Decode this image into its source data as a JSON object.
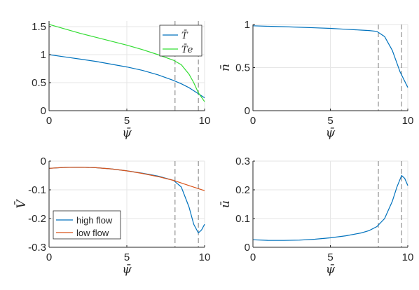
{
  "chart_data": [
    {
      "id": "T",
      "type": "line",
      "xlabel": "ψ̄",
      "ylabel": "",
      "xlim": [
        0,
        10
      ],
      "ylim": [
        0,
        1.6
      ],
      "xticks": [
        0,
        5,
        10
      ],
      "xtick_labels": [
        "0",
        "5",
        "10"
      ],
      "yticks": [
        0,
        0.5,
        1,
        1.5
      ],
      "ytick_labels": [
        "0",
        "0.5",
        "1",
        "1.5"
      ],
      "grid": true,
      "vlines": [
        8.1,
        9.6
      ],
      "legend": "top-right",
      "series": [
        {
          "name": "T̄",
          "color": "#0072BD",
          "x": [
            0,
            1,
            2,
            3,
            4,
            5,
            6,
            7,
            8,
            8.5,
            9,
            9.5,
            10
          ],
          "y": [
            1.0,
            0.96,
            0.92,
            0.88,
            0.83,
            0.78,
            0.72,
            0.64,
            0.54,
            0.48,
            0.41,
            0.32,
            0.23
          ]
        },
        {
          "name": "T̄e",
          "color": "#33DD33",
          "x": [
            0,
            1,
            2,
            3,
            4,
            5,
            6,
            7,
            8,
            8.5,
            9,
            9.3,
            9.6,
            10
          ],
          "y": [
            1.54,
            1.46,
            1.38,
            1.31,
            1.24,
            1.17,
            1.09,
            1.0,
            0.9,
            0.82,
            0.65,
            0.5,
            0.32,
            0.16
          ]
        }
      ]
    },
    {
      "id": "n",
      "type": "line",
      "xlabel": "ψ̄",
      "ylabel": "n̄",
      "xlim": [
        0,
        10
      ],
      "ylim": [
        0,
        1
      ],
      "xticks": [
        0,
        5,
        10
      ],
      "xtick_labels": [
        "0",
        "5",
        "10"
      ],
      "yticks": [
        0,
        0.5,
        1
      ],
      "ytick_labels": [
        "0",
        "0.5",
        "1"
      ],
      "grid": true,
      "vlines": [
        8.1,
        9.6
      ],
      "series": [
        {
          "name": "",
          "color": "#0072BD",
          "x": [
            0,
            1,
            2,
            3,
            4,
            5,
            6,
            7,
            7.5,
            8,
            8.5,
            9,
            9.5,
            10
          ],
          "y": [
            0.985,
            0.98,
            0.975,
            0.968,
            0.962,
            0.955,
            0.945,
            0.935,
            0.93,
            0.92,
            0.86,
            0.7,
            0.45,
            0.27
          ]
        }
      ]
    },
    {
      "id": "V",
      "type": "line",
      "xlabel": "ψ̄",
      "ylabel": "V̄",
      "xlim": [
        0,
        10
      ],
      "ylim": [
        -0.3,
        0
      ],
      "xticks": [
        0,
        5,
        10
      ],
      "xtick_labels": [
        "0",
        "5",
        "10"
      ],
      "yticks": [
        -0.3,
        -0.2,
        -0.1,
        0
      ],
      "ytick_labels": [
        "-0.3",
        "-0.2",
        "-0.1",
        "0"
      ],
      "grid": true,
      "vlines": [
        8.1,
        9.6
      ],
      "legend": "bottom-left",
      "series": [
        {
          "name": "high flow",
          "color": "#0072BD",
          "x": [
            0,
            1,
            2,
            3,
            4,
            5,
            6,
            7,
            8,
            8.5,
            9,
            9.3,
            9.6,
            9.8,
            10
          ],
          "y": [
            -0.025,
            -0.022,
            -0.021,
            -0.023,
            -0.027,
            -0.034,
            -0.042,
            -0.052,
            -0.067,
            -0.09,
            -0.16,
            -0.22,
            -0.25,
            -0.24,
            -0.22
          ]
        },
        {
          "name": "low flow",
          "color": "#D95319",
          "x": [
            0,
            1,
            2,
            3,
            4,
            5,
            6,
            7,
            8,
            9,
            10
          ],
          "y": [
            -0.025,
            -0.022,
            -0.021,
            -0.023,
            -0.027,
            -0.034,
            -0.043,
            -0.054,
            -0.067,
            -0.085,
            -0.103
          ]
        }
      ]
    },
    {
      "id": "u",
      "type": "line",
      "xlabel": "ψ̄",
      "ylabel": "ū",
      "xlim": [
        0,
        10
      ],
      "ylim": [
        0,
        0.3
      ],
      "xticks": [
        0,
        5,
        10
      ],
      "xtick_labels": [
        "0",
        "5",
        "10"
      ],
      "yticks": [
        0,
        0.1,
        0.2,
        0.3
      ],
      "ytick_labels": [
        "0",
        "0.1",
        "0.2",
        "0.3"
      ],
      "grid": true,
      "vlines": [
        8.1,
        9.6
      ],
      "series": [
        {
          "name": "",
          "color": "#0072BD",
          "x": [
            0,
            1,
            2,
            3,
            4,
            5,
            6,
            7,
            7.5,
            8,
            8.5,
            9,
            9.3,
            9.6,
            9.8,
            10
          ],
          "y": [
            0.026,
            0.024,
            0.024,
            0.025,
            0.028,
            0.033,
            0.04,
            0.05,
            0.058,
            0.072,
            0.1,
            0.16,
            0.21,
            0.25,
            0.24,
            0.215
          ]
        }
      ]
    }
  ]
}
